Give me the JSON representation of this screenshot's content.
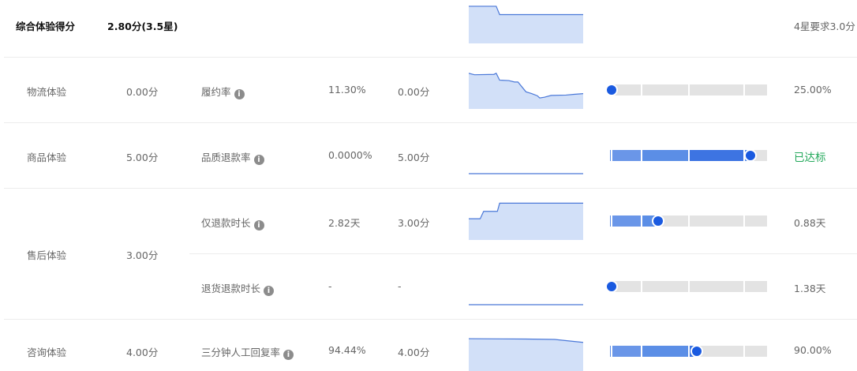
{
  "summary": {
    "label": "综合体验得分",
    "score": "2.80分(3.5星)",
    "target": "4星要求3.0分",
    "trend": [
      [
        0,
        0.96
      ],
      [
        0.24,
        0.96
      ],
      [
        0.27,
        0.74
      ],
      [
        1,
        0.74
      ]
    ]
  },
  "rows": [
    {
      "category": "物流体验",
      "category_score": "0.00分",
      "metric": "履约率",
      "value": "11.30%",
      "score": "0.00分",
      "target": "25.00%",
      "progress": 0,
      "trend": [
        [
          0,
          0.96
        ],
        [
          0.05,
          0.92
        ],
        [
          0.22,
          0.93
        ],
        [
          0.24,
          0.96
        ],
        [
          0.27,
          0.77
        ],
        [
          0.35,
          0.76
        ],
        [
          0.4,
          0.72
        ],
        [
          0.43,
          0.72
        ],
        [
          0.5,
          0.45
        ],
        [
          0.55,
          0.4
        ],
        [
          0.6,
          0.34
        ],
        [
          0.62,
          0.28
        ],
        [
          0.66,
          0.3
        ],
        [
          0.72,
          0.35
        ],
        [
          0.85,
          0.36
        ],
        [
          0.92,
          0.38
        ],
        [
          1,
          0.4
        ]
      ]
    },
    {
      "category": "商品体验",
      "category_score": "5.00分",
      "metric": "品质退款率",
      "value": "0.0000%",
      "score": "5.00分",
      "target": "已达标",
      "target_status": "met",
      "progress": 0.9,
      "trend": [
        [
          0,
          0
        ],
        [
          1,
          0
        ]
      ]
    },
    {
      "category": "售后体验",
      "category_score": "3.00分",
      "metric": "仅退款时长",
      "value": "2.82天",
      "score": "3.00分",
      "target": "0.88天",
      "progress": 0.3,
      "trend": [
        [
          0,
          0.55
        ],
        [
          0.1,
          0.55
        ],
        [
          0.13,
          0.75
        ],
        [
          0.25,
          0.75
        ],
        [
          0.27,
          0.97
        ],
        [
          1,
          0.97
        ]
      ]
    },
    {
      "metric": "退货退款时长",
      "value": "-",
      "score": "-",
      "target": "1.38天",
      "progress": 0,
      "trend": [
        [
          0,
          0
        ],
        [
          1,
          0
        ]
      ]
    },
    {
      "category": "咨询体验",
      "category_score": "4.00分",
      "metric": "三分钟人工回复率",
      "value": "94.44%",
      "score": "4.00分",
      "target": "90.00%",
      "progress": 0.55,
      "trend": [
        [
          0,
          0.85
        ],
        [
          0.5,
          0.84
        ],
        [
          0.75,
          0.83
        ],
        [
          1,
          0.75
        ]
      ]
    }
  ],
  "colors": {
    "fill": "#d2e0f8",
    "line": "#4a78d8",
    "bar": "#5b8ee6",
    "knob": "#1a5ae0",
    "track": "#e3e3e3",
    "met": "#22a85a"
  }
}
